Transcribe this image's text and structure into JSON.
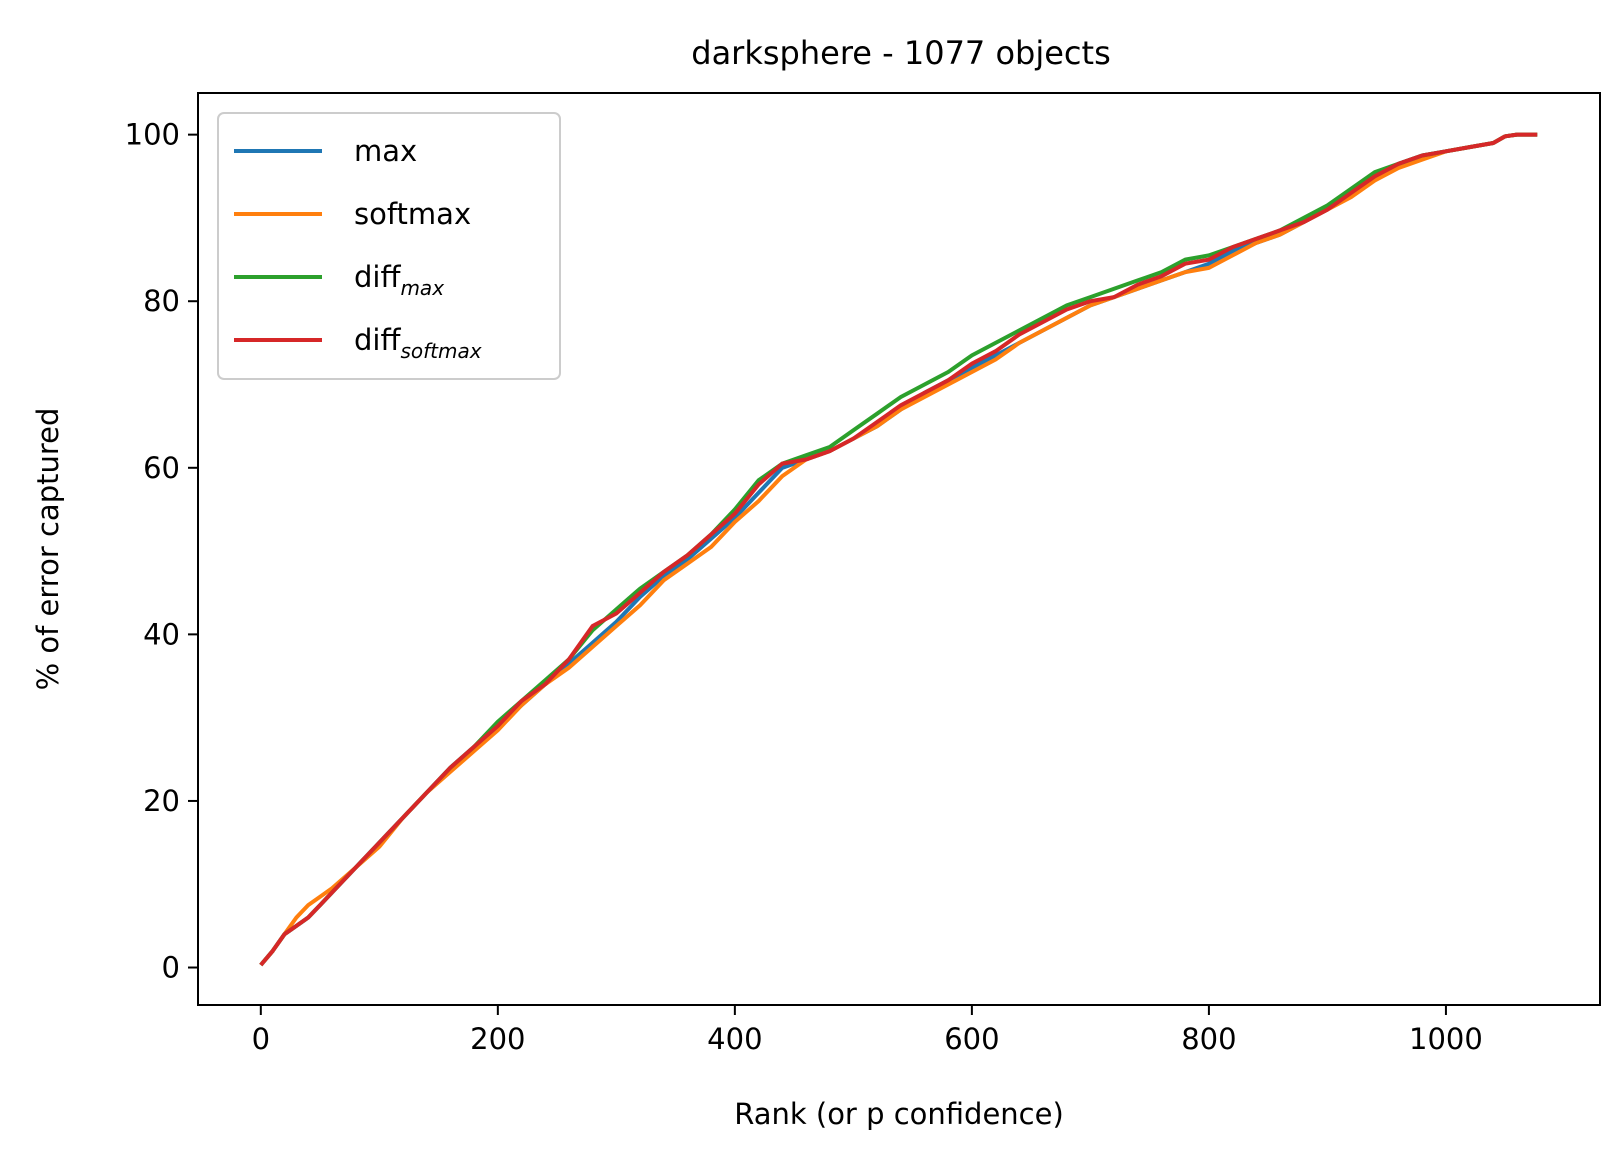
{
  "chart_data": {
    "type": "line",
    "title": "darksphere - 1077 objects",
    "xlabel": "Rank (or p confidence)",
    "ylabel": "% of error captured",
    "xlim": [
      -53,
      1130
    ],
    "ylim": [
      -4.5,
      105
    ],
    "xticks": [
      0,
      200,
      400,
      600,
      800,
      1000
    ],
    "yticks": [
      0,
      20,
      40,
      60,
      80,
      100
    ],
    "grid": false,
    "legend_position": "top-left",
    "series": [
      {
        "name": "max",
        "color": "#1f77b4",
        "x": [
          0,
          10,
          20,
          30,
          40,
          50,
          60,
          80,
          100,
          120,
          140,
          160,
          180,
          200,
          220,
          240,
          260,
          280,
          300,
          320,
          340,
          360,
          380,
          400,
          420,
          440,
          460,
          480,
          500,
          520,
          540,
          560,
          580,
          600,
          620,
          640,
          660,
          680,
          700,
          720,
          740,
          760,
          780,
          800,
          820,
          840,
          860,
          880,
          900,
          920,
          940,
          960,
          980,
          1000,
          1020,
          1040,
          1050,
          1060,
          1077
        ],
        "y": [
          0.3,
          2,
          4,
          5,
          6,
          7.5,
          9,
          12,
          15,
          18,
          21,
          24,
          26.5,
          29,
          31.5,
          34,
          36.5,
          39,
          41.5,
          44.5,
          47,
          49,
          51.5,
          54,
          57,
          60,
          61,
          62,
          63.5,
          65,
          67,
          69,
          70.5,
          72,
          73.5,
          75,
          76.5,
          78,
          79.5,
          80.5,
          81.5,
          82.5,
          83.5,
          84.5,
          86,
          87,
          88,
          89.5,
          91,
          93,
          95,
          96.5,
          97.5,
          98,
          98.5,
          99,
          99.8,
          100,
          100
        ]
      },
      {
        "name": "softmax",
        "color": "#ff7f0e",
        "x": [
          0,
          10,
          20,
          30,
          40,
          50,
          60,
          80,
          100,
          120,
          140,
          160,
          180,
          200,
          220,
          240,
          260,
          280,
          300,
          320,
          340,
          360,
          380,
          400,
          420,
          440,
          460,
          480,
          500,
          520,
          540,
          560,
          580,
          600,
          620,
          640,
          660,
          680,
          700,
          720,
          740,
          760,
          780,
          800,
          820,
          840,
          860,
          880,
          900,
          920,
          940,
          960,
          980,
          1000,
          1020,
          1040,
          1050,
          1060,
          1077
        ],
        "y": [
          0.3,
          2,
          4,
          6,
          7.5,
          8.5,
          9.5,
          12,
          14.5,
          18,
          21,
          23.5,
          26,
          28.5,
          31.5,
          34,
          36,
          38.5,
          41,
          43.5,
          46.5,
          48.5,
          50.5,
          53.5,
          56,
          59,
          61,
          62,
          63.5,
          65,
          67,
          68.5,
          70,
          71.5,
          73,
          75,
          76.5,
          78,
          79.5,
          80.5,
          81.5,
          82.5,
          83.5,
          84,
          85.5,
          87,
          88,
          89.5,
          91,
          92.5,
          94.5,
          96,
          97,
          98,
          98.5,
          99,
          99.8,
          100,
          100
        ]
      },
      {
        "name": "diff",
        "name_sub": "max",
        "color": "#2ca02c",
        "x": [
          0,
          10,
          20,
          30,
          40,
          50,
          60,
          80,
          100,
          120,
          140,
          160,
          180,
          200,
          220,
          240,
          260,
          280,
          300,
          320,
          340,
          360,
          380,
          400,
          420,
          440,
          460,
          480,
          500,
          520,
          540,
          560,
          580,
          600,
          620,
          640,
          660,
          680,
          700,
          720,
          740,
          760,
          780,
          800,
          820,
          840,
          860,
          880,
          900,
          920,
          940,
          960,
          980,
          1000,
          1020,
          1040,
          1050,
          1060,
          1077
        ],
        "y": [
          0.3,
          2,
          4,
          5,
          6,
          7.5,
          9,
          12,
          15,
          18,
          21,
          24,
          26.5,
          29.5,
          32,
          34.5,
          37,
          40.5,
          43,
          45.5,
          47.5,
          49.5,
          52,
          55,
          58.5,
          60.5,
          61.5,
          62.5,
          64.5,
          66.5,
          68.5,
          70,
          71.5,
          73.5,
          75,
          76.5,
          78,
          79.5,
          80.5,
          81.5,
          82.5,
          83.5,
          85,
          85.5,
          86.5,
          87.5,
          88.5,
          90,
          91.5,
          93.5,
          95.5,
          96.5,
          97.5,
          98,
          98.5,
          99,
          99.8,
          100,
          100
        ]
      },
      {
        "name": "diff",
        "name_sub": "softmax",
        "color": "#d62728",
        "x": [
          0,
          10,
          20,
          30,
          40,
          50,
          60,
          80,
          100,
          120,
          140,
          160,
          180,
          200,
          220,
          240,
          260,
          280,
          300,
          320,
          340,
          360,
          380,
          400,
          420,
          440,
          460,
          480,
          500,
          520,
          540,
          560,
          580,
          600,
          620,
          640,
          660,
          680,
          700,
          720,
          740,
          760,
          780,
          800,
          820,
          840,
          860,
          880,
          900,
          920,
          940,
          960,
          980,
          1000,
          1020,
          1040,
          1050,
          1060,
          1077
        ],
        "y": [
          0.3,
          2,
          4,
          5,
          6,
          7.5,
          9,
          12,
          15,
          18,
          21,
          24,
          26.5,
          29,
          32,
          34,
          37,
          41,
          42.5,
          45,
          47.5,
          49.5,
          52,
          54.5,
          58,
          60.5,
          61,
          62,
          63.5,
          65.5,
          67.5,
          69,
          70.5,
          72.5,
          74,
          76,
          77.5,
          79,
          80,
          80.5,
          82,
          83,
          84.5,
          85,
          86.5,
          87.5,
          88.5,
          89.5,
          91,
          93,
          95,
          96.5,
          97.5,
          98,
          98.5,
          99,
          99.8,
          100,
          100
        ]
      }
    ]
  }
}
